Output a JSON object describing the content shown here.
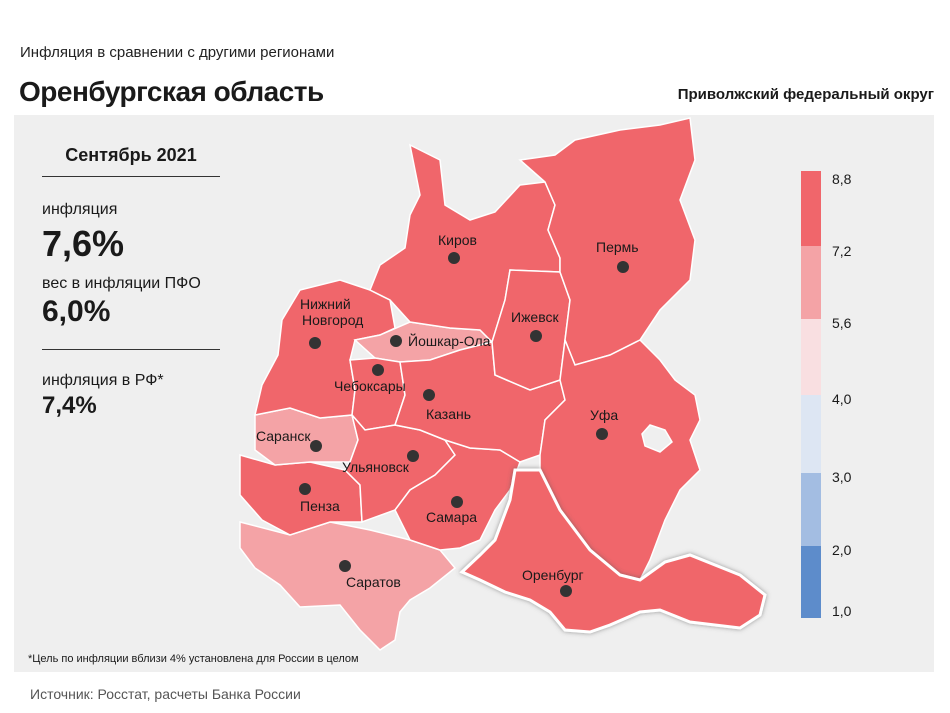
{
  "header": {
    "subtitle": "Инфляция  в сравнении  с другими  регионами",
    "title": "Оренбургская область",
    "district": "Приволжский федеральный округ"
  },
  "stats": {
    "period": "Сентябрь 2021",
    "inflation_label": "инфляция",
    "inflation_value": "7,6%",
    "weight_label": "вес в инфляции  ПФО",
    "weight_value": "6,0%",
    "rf_label": "инфляция  в РФ*",
    "rf_value": "7,4%"
  },
  "footnote": "*Цель по инфляции вблизи 4% установлена для России в целом",
  "source": "Источник: Росстат, расчеты Банка России",
  "colors": {
    "bin_7_2_8_8": "#f0666b",
    "bin_5_6_7_2": "#f4a3a6",
    "bin_4_0_5_6": "#f9dfe1",
    "bin_3_0_4_0": "#dde6f3",
    "bin_2_0_3_0": "#a3bde2",
    "bin_1_0_2_0": "#5d8ccb",
    "highlight_border": "#ffffff",
    "region_border": "#ffffff"
  },
  "legend": {
    "ticks": [
      "8,8",
      "7,2",
      "5,6",
      "4,0",
      "3,0",
      "2,0",
      "1,0"
    ]
  },
  "cities": [
    {
      "name": "Киров"
    },
    {
      "name": "Пермь"
    },
    {
      "name": "Ижевск"
    },
    {
      "name": "Нижний\nНовгород"
    },
    {
      "name": "Йошкар-Ола"
    },
    {
      "name": "Чебоксары"
    },
    {
      "name": "Казань"
    },
    {
      "name": "Уфа"
    },
    {
      "name": "Саранск"
    },
    {
      "name": "Ульяновск"
    },
    {
      "name": "Пенза"
    },
    {
      "name": "Самара"
    },
    {
      "name": "Оренбург"
    },
    {
      "name": "Саратов"
    }
  ]
}
